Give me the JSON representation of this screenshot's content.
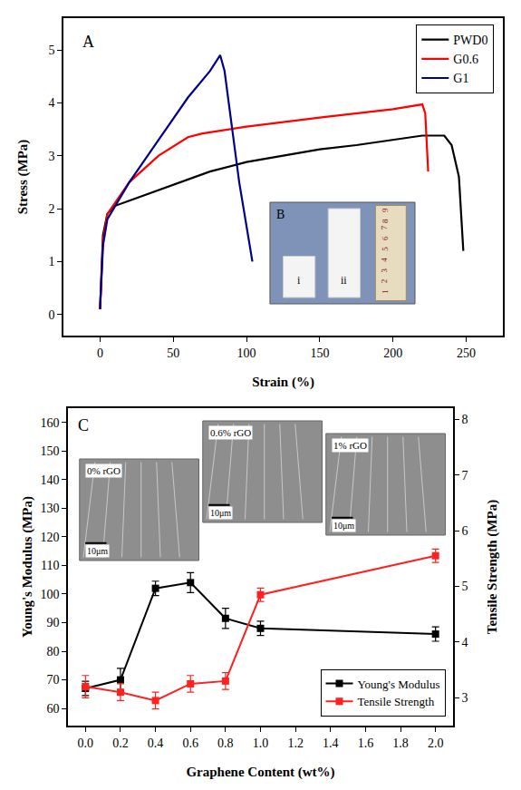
{
  "chart_data": [
    {
      "type": "line",
      "panel": "A",
      "x_label": "Strain (%)",
      "y_label": "Stress (MPa)",
      "xlim": [
        -25,
        275
      ],
      "xticks": [
        0,
        50,
        100,
        150,
        200,
        250
      ],
      "ylim": [
        -0.4,
        5.6
      ],
      "yticks": [
        0,
        1,
        2,
        3,
        4,
        5
      ],
      "legend": "top right",
      "series": [
        {
          "name": "PWD0",
          "color": "#000000",
          "line_style": "solid",
          "x": [
            0,
            2,
            5,
            10,
            20,
            30,
            50,
            75,
            100,
            125,
            150,
            175,
            200,
            220,
            235,
            240,
            245,
            248
          ],
          "values": [
            0.1,
            1.5,
            1.9,
            2.05,
            2.15,
            2.25,
            2.45,
            2.7,
            2.88,
            3.0,
            3.12,
            3.2,
            3.3,
            3.38,
            3.38,
            3.2,
            2.6,
            1.2
          ]
        },
        {
          "name": "G0.6",
          "color": "#ff0000",
          "line_style": "solid",
          "x": [
            0,
            2,
            5,
            20,
            40,
            60,
            70,
            100,
            150,
            200,
            220,
            222,
            224
          ],
          "values": [
            0.1,
            1.4,
            1.9,
            2.5,
            3.0,
            3.35,
            3.42,
            3.55,
            3.72,
            3.88,
            3.97,
            3.8,
            2.7
          ]
        },
        {
          "name": "G1",
          "color": "#00008b",
          "line_style": "solid",
          "x": [
            0,
            2,
            5,
            20,
            40,
            60,
            75,
            82,
            85,
            95,
            104
          ],
          "values": [
            0.1,
            1.3,
            1.8,
            2.5,
            3.3,
            4.1,
            4.6,
            4.9,
            4.6,
            2.5,
            1.0
          ]
        }
      ],
      "inset": {
        "label": "B",
        "samples": [
          "i",
          "ii"
        ],
        "ruler": [
          "1",
          "2",
          "3",
          "4",
          "5",
          "6",
          "7",
          "8",
          "9"
        ]
      }
    },
    {
      "type": "line",
      "panel": "C",
      "x_label": "Graphene Content (wt%)",
      "y_label": "Young's Modulus (MPa)",
      "y2_label": "Tensile Strength (MPa)",
      "x": [
        0,
        0.2,
        0.4,
        0.6,
        0.8,
        1.0,
        2.0
      ],
      "xlim": [
        -0.1,
        2.1
      ],
      "xticks": [
        {
          "value": 0,
          "label": "0.0"
        },
        0.2,
        0.4,
        0.6,
        0.8,
        {
          "value": 1,
          "label": "1.0"
        },
        1.2,
        1.4,
        1.6,
        1.8,
        {
          "value": 2,
          "label": "2.0"
        }
      ],
      "ylim": [
        54,
        165
      ],
      "yticks": [
        60,
        70,
        80,
        90,
        100,
        110,
        120,
        130,
        140,
        150,
        160
      ],
      "y2lim": [
        2.5,
        8.2
      ],
      "y2ticks": [
        3,
        4,
        5,
        6,
        7,
        8
      ],
      "legend": "bottom right",
      "series": [
        {
          "name": "Young's Modulus",
          "color": "#000000",
          "marker": "square",
          "line_style": "solid",
          "values": [
            67,
            70,
            102,
            104,
            91.5,
            88,
            86
          ],
          "errors": [
            2.5,
            4,
            2.5,
            3.5,
            3.5,
            2.5,
            2.5
          ]
        },
        {
          "name": "Tensile Strength",
          "color": "#ff2020",
          "marker": "square",
          "line_style": "solid",
          "axis": "y2",
          "values": [
            3.2,
            3.1,
            2.95,
            3.25,
            3.3,
            4.85,
            5.55
          ],
          "errors": [
            0.2,
            0.15,
            0.15,
            0.15,
            0.15,
            0.12,
            0.12
          ]
        }
      ],
      "insets": [
        {
          "label": "0% rGO",
          "scale": "10μm"
        },
        {
          "label": "0.6% rGO",
          "scale": "10μm"
        },
        {
          "label": "1% rGO",
          "scale": "10μm"
        }
      ]
    }
  ]
}
